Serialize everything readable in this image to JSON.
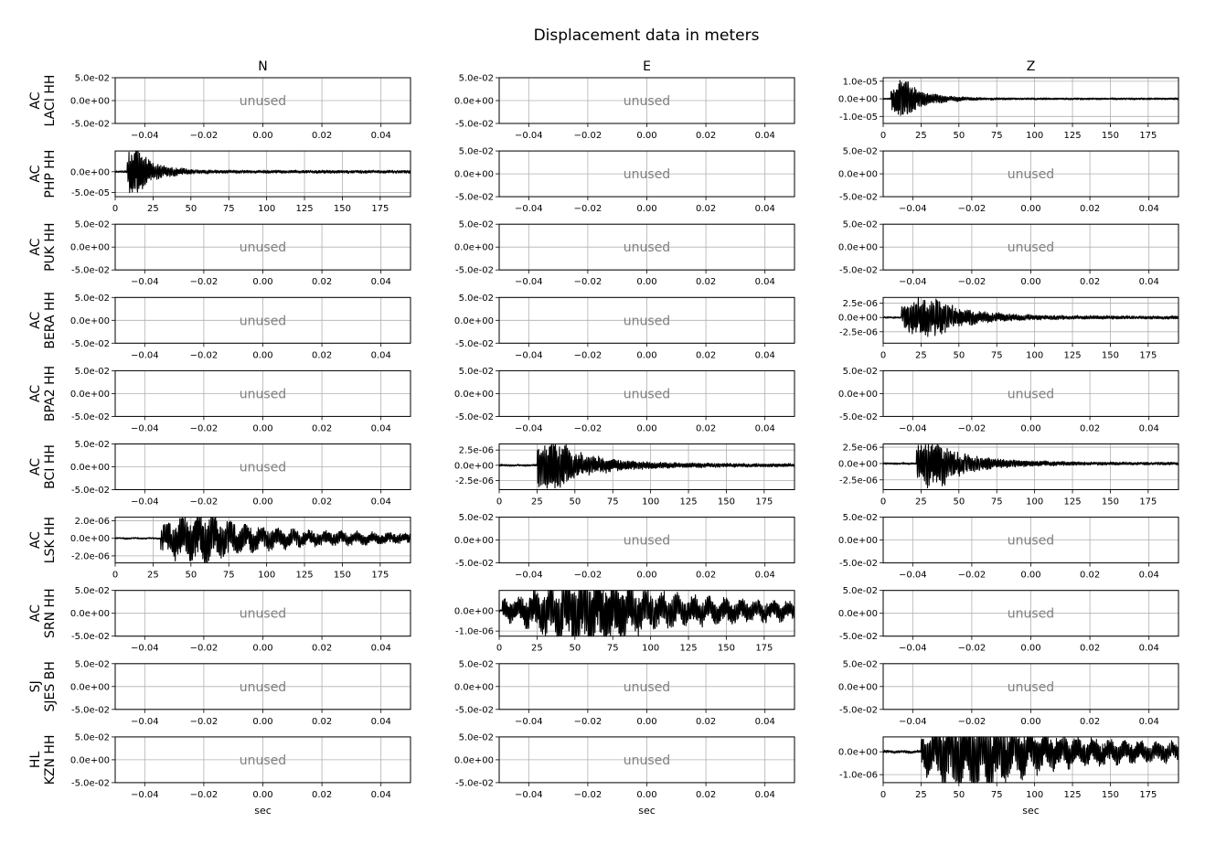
{
  "chart_data": {
    "type": "line",
    "title": "Displacement data in meters",
    "columns": [
      "N",
      "E",
      "Z"
    ],
    "xlabel": "sec",
    "unused_label": "unused",
    "trace_color": "#000000",
    "grid": true,
    "unused_x_ticks": [
      "−0.04",
      "−0.02",
      "0.00",
      "0.02",
      "0.04"
    ],
    "unused_y_ticks": [
      "5.0e-02",
      "0.0e+00",
      "-5.0e-02"
    ],
    "time_x_ticks": [
      "0",
      "25",
      "50",
      "75",
      "100",
      "125",
      "150",
      "175"
    ],
    "rows": [
      {
        "network": "AC",
        "station": "LACI HH",
        "panels": [
          {
            "used": false
          },
          {
            "used": false
          },
          {
            "used": true,
            "amp": 1.1e-05,
            "onset": 5,
            "peak": 14,
            "width": 10,
            "tail": 0.05,
            "ylim": [
              -1.4e-05,
              1.2e-05
            ],
            "yticks": [
              1e-05,
              0,
              -1e-05
            ],
            "ytick_labels": [
              "1.0e-05",
              "0.0e+00",
              "-1.0e-05"
            ]
          }
        ]
      },
      {
        "network": "AC",
        "station": "PHP HH",
        "panels": [
          {
            "used": true,
            "amp": 6e-05,
            "onset": 8,
            "peak": 13,
            "width": 9,
            "tail": 0.06,
            "ylim": [
              -6e-05,
              5e-05
            ],
            "yticks": [
              0,
              -5e-05
            ],
            "ytick_labels": [
              "0.0e+00",
              "-5.0e-05"
            ]
          },
          {
            "used": false
          },
          {
            "used": false
          }
        ]
      },
      {
        "network": "AC",
        "station": "PUK HH",
        "panels": [
          {
            "used": false
          },
          {
            "used": false
          },
          {
            "used": false
          }
        ]
      },
      {
        "network": "AC",
        "station": "BERA HH",
        "panels": [
          {
            "used": false
          },
          {
            "used": false
          },
          {
            "used": true,
            "amp": 3.5e-06,
            "onset": 12,
            "peak": 30,
            "width": 18,
            "tail": 0.08,
            "ylim": [
              -4.5e-06,
              3.5e-06
            ],
            "yticks": [
              2.5e-06,
              0,
              -2.5e-06
            ],
            "ytick_labels": [
              "2.5e-06",
              "0.0e+00",
              "-2.5e-06"
            ]
          }
        ]
      },
      {
        "network": "AC",
        "station": "BPA2 HH",
        "panels": [
          {
            "used": false
          },
          {
            "used": false
          },
          {
            "used": false
          }
        ]
      },
      {
        "network": "AC",
        "station": "BCI HH",
        "panels": [
          {
            "used": false
          },
          {
            "used": true,
            "amp": 4e-06,
            "onset": 25,
            "peak": 33,
            "width": 20,
            "tail": 0.07,
            "ylim": [
              -4e-06,
              3.5e-06
            ],
            "yticks": [
              2.5e-06,
              0,
              -2.5e-06
            ],
            "ytick_labels": [
              "2.5e-06",
              "0.0e+00",
              "-2.5e-06"
            ]
          },
          {
            "used": true,
            "amp": 3.6e-06,
            "onset": 22,
            "peak": 33,
            "width": 18,
            "tail": 0.06,
            "ylim": [
              -4e-06,
              3e-06
            ],
            "yticks": [
              2.5e-06,
              0,
              -2.5e-06
            ],
            "ytick_labels": [
              "2.5e-06",
              "0.0e+00",
              "-2.5e-06"
            ]
          }
        ]
      },
      {
        "network": "AC",
        "station": "LSK HH",
        "panels": [
          {
            "used": true,
            "amp": 2.3e-06,
            "onset": 30,
            "peak": 57,
            "width": 28,
            "tail": 0.22,
            "ylim": [
              -2.8e-06,
              2.4e-06
            ],
            "yticks": [
              2e-06,
              0,
              -2e-06
            ],
            "ytick_labels": [
              "2.0e-06",
              "0.0e+00",
              "-2.0e-06"
            ]
          },
          {
            "used": false
          },
          {
            "used": false
          }
        ]
      },
      {
        "network": "AC",
        "station": "SRN HH",
        "panels": [
          {
            "used": false
          },
          {
            "used": true,
            "amp": 1.4e-06,
            "onset": 2,
            "peak": 60,
            "width": 35,
            "tail": 0.25,
            "ylim": [
              -1.25e-06,
              1e-06
            ],
            "yticks": [
              0,
              -1e-06
            ],
            "ytick_labels": [
              "0.0e+00",
              "-1.0e-06"
            ]
          },
          {
            "used": false
          }
        ]
      },
      {
        "network": "SJ",
        "station": "SJES BH",
        "panels": [
          {
            "used": false
          },
          {
            "used": false
          },
          {
            "used": false
          }
        ]
      },
      {
        "network": "HL",
        "station": "KZN HH",
        "panels": [
          {
            "used": false
          },
          {
            "used": false
          },
          {
            "used": true,
            "amp": 1.5e-06,
            "onset": 25,
            "peak": 60,
            "width": 30,
            "tail": 0.22,
            "ylim": [
              -1.35e-06,
              6.5e-07
            ],
            "yticks": [
              0,
              -1e-06
            ],
            "ytick_labels": [
              "0.0e+00",
              "-1.0e-06"
            ]
          }
        ]
      }
    ]
  }
}
